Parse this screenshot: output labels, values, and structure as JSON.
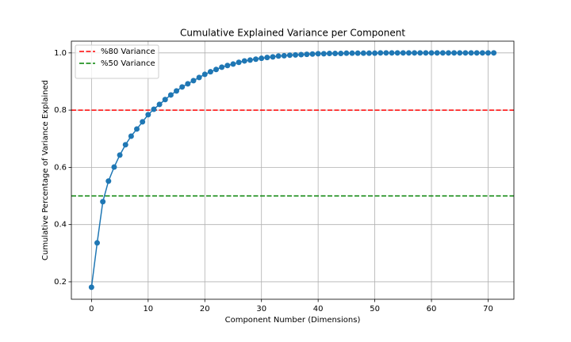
{
  "chart_data": {
    "type": "line",
    "title": "Cumulative Explained Variance per Component",
    "xlabel": "Component Number (Dimensions)",
    "ylabel": "Cumulative Percentage of Variance Explained",
    "x": [
      0,
      1,
      2,
      3,
      4,
      5,
      6,
      7,
      8,
      9,
      10,
      11,
      12,
      13,
      14,
      15,
      16,
      17,
      18,
      19,
      20,
      21,
      22,
      23,
      24,
      25,
      26,
      27,
      28,
      29,
      30,
      31,
      32,
      33,
      34,
      35,
      36,
      37,
      38,
      39,
      40,
      41,
      42,
      43,
      44,
      45,
      46,
      47,
      48,
      49,
      50,
      51,
      52,
      53,
      54,
      55,
      56,
      57,
      58,
      59,
      60,
      61,
      62,
      63,
      64,
      65,
      66,
      67,
      68,
      69,
      70,
      71
    ],
    "series": [
      {
        "color": "#1f77b4",
        "values": [
          0.181,
          0.336,
          0.48,
          0.552,
          0.601,
          0.643,
          0.679,
          0.709,
          0.734,
          0.759,
          0.784,
          0.803,
          0.82,
          0.837,
          0.853,
          0.867,
          0.881,
          0.892,
          0.903,
          0.914,
          0.925,
          0.934,
          0.942,
          0.95,
          0.956,
          0.961,
          0.967,
          0.972,
          0.975,
          0.978,
          0.981,
          0.984,
          0.986,
          0.989,
          0.99,
          0.992,
          0.993,
          0.994,
          0.995,
          0.996,
          0.997,
          0.997,
          0.998,
          0.998,
          0.998,
          0.999,
          0.999,
          0.999,
          0.999,
          0.999,
          0.999,
          1,
          1,
          1,
          1,
          1,
          1,
          1,
          1,
          1,
          1,
          1,
          1,
          1,
          1,
          1,
          1,
          1,
          1,
          1,
          1,
          1
        ]
      }
    ],
    "reference_lines": [
      {
        "name": "%80 Variance",
        "color": "red",
        "value": 0.8
      },
      {
        "name": "%50 Variance",
        "color": "green",
        "value": 0.5
      }
    ],
    "xlim": [
      -3.55,
      74.55
    ],
    "ylim": [
      0.139,
      1.041
    ],
    "xticks": [
      0,
      10,
      20,
      30,
      40,
      50,
      60,
      70
    ],
    "yticks": [
      0.2,
      0.4,
      0.6,
      0.8,
      {
        "value": 1,
        "label": "1.0"
      }
    ],
    "grid": true,
    "legend": "upper left"
  }
}
